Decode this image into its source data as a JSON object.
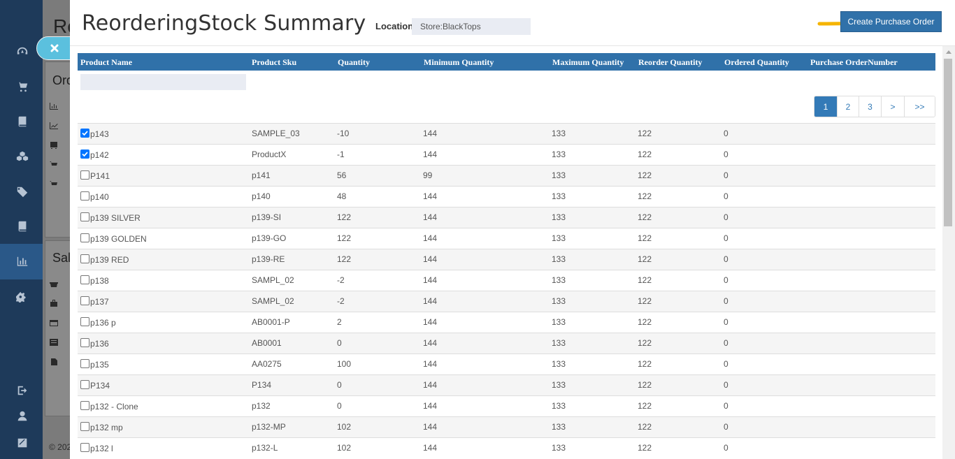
{
  "background": {
    "title_fragment": "Re",
    "card1_title": "Ord",
    "card2_title": "Sale",
    "footer_fragment": "© 202"
  },
  "modal": {
    "title": "ReorderingStock Summary",
    "location_label": "Location",
    "location_value": "Store:BlackTops",
    "create_button": "Create Purchase Order"
  },
  "table": {
    "columns": [
      "Product Name",
      "Product Sku",
      "Quantity",
      "Minimum Quantity",
      "Maximum Quantity",
      "Reorder Quantity",
      "Ordered Quantity",
      "Purchase OrderNumber"
    ],
    "rows": [
      {
        "checked": true,
        "name": "p143",
        "sku": "SAMPLE_03",
        "quantity": "-10",
        "min": "144",
        "max": "133",
        "reorder": "122",
        "ordered": "0",
        "po": ""
      },
      {
        "checked": true,
        "name": "p142",
        "sku": "ProductX",
        "quantity": "-1",
        "min": "144",
        "max": "133",
        "reorder": "122",
        "ordered": "0",
        "po": ""
      },
      {
        "checked": false,
        "name": "P141",
        "sku": "p141",
        "quantity": "56",
        "min": "99",
        "max": "133",
        "reorder": "122",
        "ordered": "0",
        "po": ""
      },
      {
        "checked": false,
        "name": "p140",
        "sku": "p140",
        "quantity": "48",
        "min": "144",
        "max": "133",
        "reorder": "122",
        "ordered": "0",
        "po": ""
      },
      {
        "checked": false,
        "name": "p139 SILVER",
        "sku": "p139-SI",
        "quantity": "122",
        "min": "144",
        "max": "133",
        "reorder": "122",
        "ordered": "0",
        "po": ""
      },
      {
        "checked": false,
        "name": "p139 GOLDEN",
        "sku": "p139-GO",
        "quantity": "122",
        "min": "144",
        "max": "133",
        "reorder": "122",
        "ordered": "0",
        "po": ""
      },
      {
        "checked": false,
        "name": "p139 RED",
        "sku": "p139-RE",
        "quantity": "122",
        "min": "144",
        "max": "133",
        "reorder": "122",
        "ordered": "0",
        "po": ""
      },
      {
        "checked": false,
        "name": "p138",
        "sku": "SAMPL_02",
        "quantity": "-2",
        "min": "144",
        "max": "133",
        "reorder": "122",
        "ordered": "0",
        "po": ""
      },
      {
        "checked": false,
        "name": "p137",
        "sku": "SAMPL_02",
        "quantity": "-2",
        "min": "144",
        "max": "133",
        "reorder": "122",
        "ordered": "0",
        "po": ""
      },
      {
        "checked": false,
        "name": "p136 p",
        "sku": "AB0001-P",
        "quantity": "2",
        "min": "144",
        "max": "133",
        "reorder": "122",
        "ordered": "0",
        "po": ""
      },
      {
        "checked": false,
        "name": "p136",
        "sku": "AB0001",
        "quantity": "0",
        "min": "144",
        "max": "133",
        "reorder": "122",
        "ordered": "0",
        "po": ""
      },
      {
        "checked": false,
        "name": "p135",
        "sku": "AA0275",
        "quantity": "100",
        "min": "144",
        "max": "133",
        "reorder": "122",
        "ordered": "0",
        "po": ""
      },
      {
        "checked": false,
        "name": "P134",
        "sku": "P134",
        "quantity": "0",
        "min": "144",
        "max": "133",
        "reorder": "122",
        "ordered": "0",
        "po": ""
      },
      {
        "checked": false,
        "name": "p132 - Clone",
        "sku": "p132",
        "quantity": "0",
        "min": "144",
        "max": "133",
        "reorder": "122",
        "ordered": "0",
        "po": ""
      },
      {
        "checked": false,
        "name": "p132 mp",
        "sku": "p132-MP",
        "quantity": "102",
        "min": "144",
        "max": "133",
        "reorder": "122",
        "ordered": "0",
        "po": ""
      },
      {
        "checked": false,
        "name": "p132 l",
        "sku": "p132-L",
        "quantity": "102",
        "min": "144",
        "max": "133",
        "reorder": "122",
        "ordered": "0",
        "po": ""
      }
    ]
  },
  "pagination": {
    "pages": [
      "1",
      "2",
      "3",
      ">",
      ">>"
    ],
    "active": "1"
  },
  "colors": {
    "header_blue": "#3071a9",
    "sidebar_dark": "#1e3a5a",
    "arrow_yellow": "#f5b400"
  }
}
